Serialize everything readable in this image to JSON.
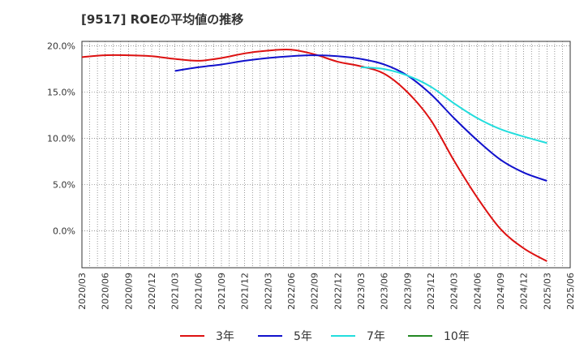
{
  "chart_data": {
    "type": "line",
    "title": "[9517]  ROEの平均値の推移",
    "xlabel": "",
    "ylabel": "",
    "ylim": [
      -4,
      20.5
    ],
    "y_ticks": [
      0,
      5,
      10,
      15,
      20
    ],
    "y_tick_labels": [
      "0.0%",
      "5.0%",
      "10.0%",
      "15.0%",
      "20.0%"
    ],
    "x_ticks": [
      "2020/03",
      "2020/06",
      "2020/09",
      "2020/12",
      "2021/03",
      "2021/06",
      "2021/09",
      "2021/12",
      "2022/03",
      "2022/06",
      "2022/09",
      "2022/12",
      "2023/03",
      "2023/06",
      "2023/09",
      "2023/12",
      "2024/03",
      "2024/06",
      "2024/09",
      "2024/12",
      "2025/03",
      "2025/06"
    ],
    "grid": true,
    "legend_position": "bottom",
    "series": [
      {
        "name": "3年",
        "color": "#dd1111",
        "x": [
          "2020/03",
          "2020/06",
          "2020/09",
          "2020/12",
          "2021/03",
          "2021/06",
          "2021/09",
          "2021/12",
          "2022/03",
          "2022/06",
          "2022/09",
          "2022/12",
          "2023/03",
          "2023/06",
          "2023/09",
          "2023/12",
          "2024/03",
          "2024/06",
          "2024/09",
          "2024/12",
          "2025/03"
        ],
        "values": [
          18.8,
          19.0,
          19.0,
          18.9,
          18.6,
          18.4,
          18.7,
          19.2,
          19.5,
          19.6,
          19.1,
          18.3,
          17.8,
          17.0,
          15.0,
          12.0,
          7.6,
          3.6,
          0.2,
          -1.9,
          -3.3
        ]
      },
      {
        "name": "5年",
        "color": "#1111cc",
        "x": [
          "2021/03",
          "2021/06",
          "2021/09",
          "2021/12",
          "2022/03",
          "2022/06",
          "2022/09",
          "2022/12",
          "2023/03",
          "2023/06",
          "2023/09",
          "2023/12",
          "2024/03",
          "2024/06",
          "2024/09",
          "2024/12",
          "2025/03"
        ],
        "values": [
          17.3,
          17.7,
          18.0,
          18.4,
          18.7,
          18.9,
          19.0,
          18.9,
          18.6,
          18.0,
          16.8,
          14.8,
          12.2,
          9.8,
          7.7,
          6.3,
          5.4
        ]
      },
      {
        "name": "7年",
        "color": "#22dddd",
        "x": [
          "2023/03",
          "2023/06",
          "2023/09",
          "2023/12",
          "2024/03",
          "2024/06",
          "2024/09",
          "2024/12",
          "2025/03"
        ],
        "values": [
          17.7,
          17.5,
          16.8,
          15.6,
          13.8,
          12.2,
          11.0,
          10.2,
          9.5
        ]
      },
      {
        "name": "10年",
        "color": "#228822",
        "x": [],
        "values": []
      }
    ]
  }
}
